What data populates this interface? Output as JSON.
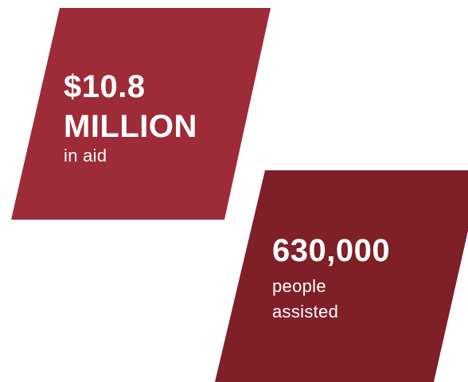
{
  "colors": {
    "panel_primary": "#9e2b38",
    "panel_secondary": "#7f1f28",
    "text": "#ffffff"
  },
  "stats": [
    {
      "value_line1": "$10.8",
      "value_line2": "MILLION",
      "caption": "in aid"
    },
    {
      "value": "630,000",
      "caption_line1": "people",
      "caption_line2": "assisted"
    }
  ]
}
